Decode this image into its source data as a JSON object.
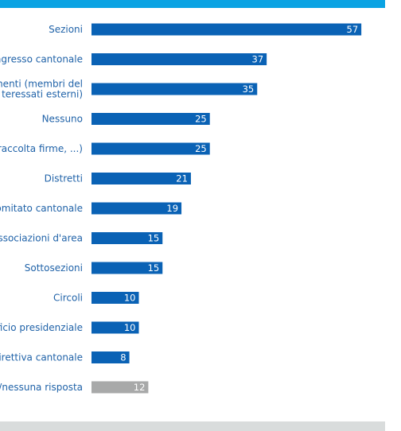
{
  "chart_data": {
    "type": "bar",
    "orientation": "horizontal",
    "categories": [
      "Sezioni",
      "Congresso cantonale",
      "manenti (membri del\nteressati esterni)",
      "Nessuno",
      "nd, raccolta firme, ...)",
      "Distretti",
      "Comitato cantonale",
      "Associazioni d'area",
      "Sottosezioni",
      "Circoli",
      "Ufficio presidenziale",
      "Direttiva cantonale",
      "so/nessuna risposta"
    ],
    "values": [
      57,
      37,
      35,
      25,
      25,
      21,
      19,
      15,
      15,
      10,
      10,
      8,
      12
    ],
    "colors": [
      "#0a62b5",
      "#0a62b5",
      "#0a62b5",
      "#0a62b5",
      "#0a62b5",
      "#0a62b5",
      "#0a62b5",
      "#0a62b5",
      "#0a62b5",
      "#0a62b5",
      "#0a62b5",
      "#0a62b5",
      "#a8a9a9"
    ],
    "title": "",
    "xlabel": "",
    "ylabel": "",
    "xlim": [
      0,
      60
    ],
    "grid": false,
    "legend": "none"
  },
  "colors": {
    "accent_bar": "#0aa3e3",
    "bar_primary": "#0a62b5",
    "bar_other": "#a8a9a9",
    "label_text": "#1f62a8",
    "footer_bar": "#d9dcdc"
  }
}
